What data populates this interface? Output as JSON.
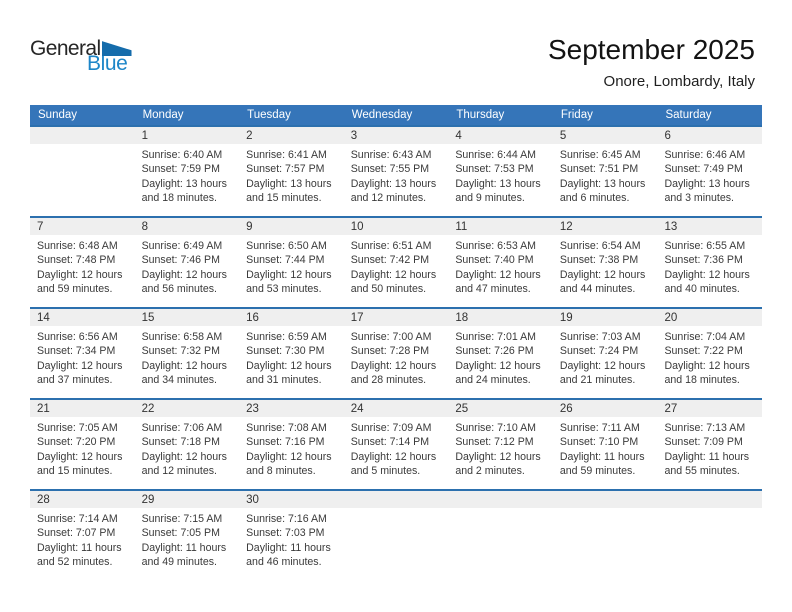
{
  "logo": {
    "part1": "General",
    "part2": "Blue"
  },
  "header": {
    "title": "September 2025",
    "subtitle": "Onore, Lombardy, Italy"
  },
  "colors": {
    "header_blue": "#3575b9",
    "row_border_blue": "#2c70ae",
    "date_strip_gray": "#efefef",
    "logo_blue": "#1d86c8",
    "logo_triangle_blue": "#156cab"
  },
  "weekdays": [
    "Sunday",
    "Monday",
    "Tuesday",
    "Wednesday",
    "Thursday",
    "Friday",
    "Saturday"
  ],
  "weeks": [
    [
      null,
      {
        "day": "1",
        "lines": [
          "Sunrise: 6:40 AM",
          "Sunset: 7:59 PM",
          "Daylight: 13 hours",
          "and 18 minutes."
        ]
      },
      {
        "day": "2",
        "lines": [
          "Sunrise: 6:41 AM",
          "Sunset: 7:57 PM",
          "Daylight: 13 hours",
          "and 15 minutes."
        ]
      },
      {
        "day": "3",
        "lines": [
          "Sunrise: 6:43 AM",
          "Sunset: 7:55 PM",
          "Daylight: 13 hours",
          "and 12 minutes."
        ]
      },
      {
        "day": "4",
        "lines": [
          "Sunrise: 6:44 AM",
          "Sunset: 7:53 PM",
          "Daylight: 13 hours",
          "and 9 minutes."
        ]
      },
      {
        "day": "5",
        "lines": [
          "Sunrise: 6:45 AM",
          "Sunset: 7:51 PM",
          "Daylight: 13 hours",
          "and 6 minutes."
        ]
      },
      {
        "day": "6",
        "lines": [
          "Sunrise: 6:46 AM",
          "Sunset: 7:49 PM",
          "Daylight: 13 hours",
          "and 3 minutes."
        ]
      }
    ],
    [
      {
        "day": "7",
        "lines": [
          "Sunrise: 6:48 AM",
          "Sunset: 7:48 PM",
          "Daylight: 12 hours",
          "and 59 minutes."
        ]
      },
      {
        "day": "8",
        "lines": [
          "Sunrise: 6:49 AM",
          "Sunset: 7:46 PM",
          "Daylight: 12 hours",
          "and 56 minutes."
        ]
      },
      {
        "day": "9",
        "lines": [
          "Sunrise: 6:50 AM",
          "Sunset: 7:44 PM",
          "Daylight: 12 hours",
          "and 53 minutes."
        ]
      },
      {
        "day": "10",
        "lines": [
          "Sunrise: 6:51 AM",
          "Sunset: 7:42 PM",
          "Daylight: 12 hours",
          "and 50 minutes."
        ]
      },
      {
        "day": "11",
        "lines": [
          "Sunrise: 6:53 AM",
          "Sunset: 7:40 PM",
          "Daylight: 12 hours",
          "and 47 minutes."
        ]
      },
      {
        "day": "12",
        "lines": [
          "Sunrise: 6:54 AM",
          "Sunset: 7:38 PM",
          "Daylight: 12 hours",
          "and 44 minutes."
        ]
      },
      {
        "day": "13",
        "lines": [
          "Sunrise: 6:55 AM",
          "Sunset: 7:36 PM",
          "Daylight: 12 hours",
          "and 40 minutes."
        ]
      }
    ],
    [
      {
        "day": "14",
        "lines": [
          "Sunrise: 6:56 AM",
          "Sunset: 7:34 PM",
          "Daylight: 12 hours",
          "and 37 minutes."
        ]
      },
      {
        "day": "15",
        "lines": [
          "Sunrise: 6:58 AM",
          "Sunset: 7:32 PM",
          "Daylight: 12 hours",
          "and 34 minutes."
        ]
      },
      {
        "day": "16",
        "lines": [
          "Sunrise: 6:59 AM",
          "Sunset: 7:30 PM",
          "Daylight: 12 hours",
          "and 31 minutes."
        ]
      },
      {
        "day": "17",
        "lines": [
          "Sunrise: 7:00 AM",
          "Sunset: 7:28 PM",
          "Daylight: 12 hours",
          "and 28 minutes."
        ]
      },
      {
        "day": "18",
        "lines": [
          "Sunrise: 7:01 AM",
          "Sunset: 7:26 PM",
          "Daylight: 12 hours",
          "and 24 minutes."
        ]
      },
      {
        "day": "19",
        "lines": [
          "Sunrise: 7:03 AM",
          "Sunset: 7:24 PM",
          "Daylight: 12 hours",
          "and 21 minutes."
        ]
      },
      {
        "day": "20",
        "lines": [
          "Sunrise: 7:04 AM",
          "Sunset: 7:22 PM",
          "Daylight: 12 hours",
          "and 18 minutes."
        ]
      }
    ],
    [
      {
        "day": "21",
        "lines": [
          "Sunrise: 7:05 AM",
          "Sunset: 7:20 PM",
          "Daylight: 12 hours",
          "and 15 minutes."
        ]
      },
      {
        "day": "22",
        "lines": [
          "Sunrise: 7:06 AM",
          "Sunset: 7:18 PM",
          "Daylight: 12 hours",
          "and 12 minutes."
        ]
      },
      {
        "day": "23",
        "lines": [
          "Sunrise: 7:08 AM",
          "Sunset: 7:16 PM",
          "Daylight: 12 hours",
          "and 8 minutes."
        ]
      },
      {
        "day": "24",
        "lines": [
          "Sunrise: 7:09 AM",
          "Sunset: 7:14 PM",
          "Daylight: 12 hours",
          "and 5 minutes."
        ]
      },
      {
        "day": "25",
        "lines": [
          "Sunrise: 7:10 AM",
          "Sunset: 7:12 PM",
          "Daylight: 12 hours",
          "and 2 minutes."
        ]
      },
      {
        "day": "26",
        "lines": [
          "Sunrise: 7:11 AM",
          "Sunset: 7:10 PM",
          "Daylight: 11 hours",
          "and 59 minutes."
        ]
      },
      {
        "day": "27",
        "lines": [
          "Sunrise: 7:13 AM",
          "Sunset: 7:09 PM",
          "Daylight: 11 hours",
          "and 55 minutes."
        ]
      }
    ],
    [
      {
        "day": "28",
        "lines": [
          "Sunrise: 7:14 AM",
          "Sunset: 7:07 PM",
          "Daylight: 11 hours",
          "and 52 minutes."
        ]
      },
      {
        "day": "29",
        "lines": [
          "Sunrise: 7:15 AM",
          "Sunset: 7:05 PM",
          "Daylight: 11 hours",
          "and 49 minutes."
        ]
      },
      {
        "day": "30",
        "lines": [
          "Sunrise: 7:16 AM",
          "Sunset: 7:03 PM",
          "Daylight: 11 hours",
          "and 46 minutes."
        ]
      },
      null,
      null,
      null,
      null
    ]
  ]
}
